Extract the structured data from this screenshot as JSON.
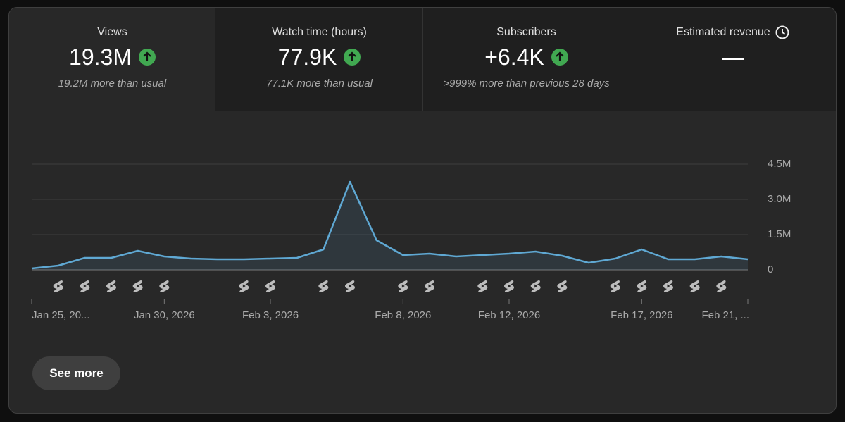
{
  "cards": [
    {
      "title": "Views",
      "value": "19.3M",
      "note": "19.2M more than usual"
    },
    {
      "title": "Watch time (hours)",
      "value": "77.9K",
      "note": "77.1K more than usual"
    },
    {
      "title": "Subscribers",
      "value": "+6.4K",
      "note": ">999% more than previous 28 days"
    },
    {
      "title": "Estimated revenue",
      "value": "—"
    }
  ],
  "chart_data": {
    "type": "line",
    "categories": [
      "Jan 25, 20...",
      null,
      null,
      null,
      null,
      "Jan 30, 2026",
      null,
      null,
      null,
      "Feb 3, 2026",
      null,
      null,
      null,
      null,
      "Feb 8, 2026",
      null,
      null,
      null,
      "Feb 12, 2026",
      null,
      null,
      null,
      null,
      "Feb 17, 2026",
      null,
      null,
      null,
      "Feb 21, ..."
    ],
    "values": [
      60000,
      180000,
      510000,
      510000,
      810000,
      570000,
      480000,
      450000,
      450000,
      480000,
      510000,
      870000,
      3750000,
      1260000,
      630000,
      690000,
      570000,
      630000,
      690000,
      780000,
      600000,
      300000,
      480000,
      870000,
      450000,
      450000,
      570000,
      450000
    ],
    "color": "#5fa8d3",
    "ylim": [
      0,
      4500000
    ],
    "yticks": [
      0,
      {
        "value": 1500000,
        "label": "1.5M"
      },
      {
        "value": 3000000,
        "label": "3.0M"
      },
      {
        "value": 4500000,
        "label": "4.5M"
      }
    ],
    "grid": true
  },
  "button": "See more"
}
